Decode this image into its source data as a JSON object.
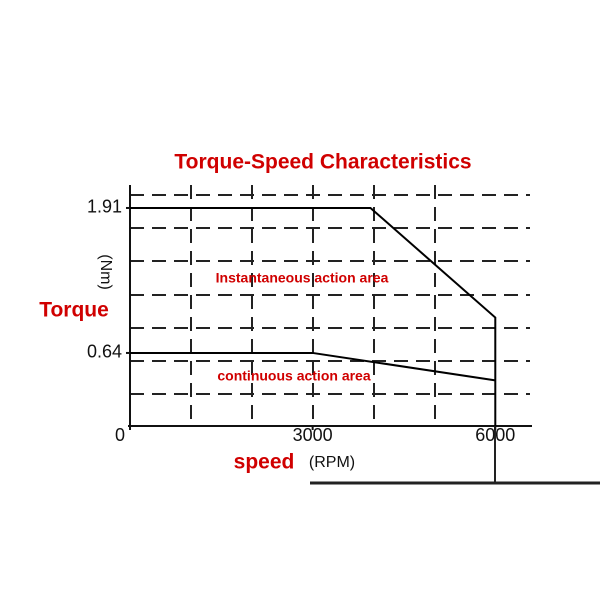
{
  "chart_data": {
    "type": "line",
    "title": "Torque-Speed Characteristics",
    "y_label": "Torque",
    "y_unit": "(Nm)",
    "x_label": "speed",
    "x_unit": "(RPM)",
    "xlim": [
      0,
      6570
    ],
    "ylim": [
      0,
      2.05
    ],
    "xticks": [
      0,
      3000,
      6000
    ],
    "yticks": [
      0.64,
      1.91
    ],
    "series": [
      {
        "x": [
          0,
          3950,
          6000,
          6000
        ],
        "values": [
          1.91,
          1.91,
          0.95,
          0
        ],
        "color": "#000000"
      },
      {
        "x": [
          0,
          3000,
          6000
        ],
        "values": [
          0.64,
          0.64,
          0.4
        ],
        "color": "#000000"
      }
    ],
    "annotations": [
      "Instantaneous action area",
      "continuous action area"
    ]
  }
}
